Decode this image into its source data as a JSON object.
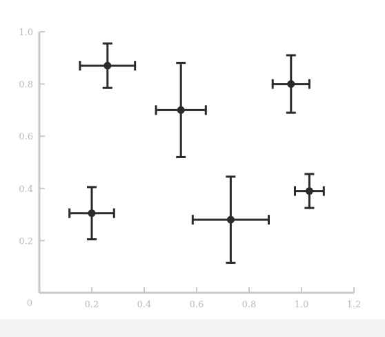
{
  "chart_data": {
    "type": "scatter",
    "title": "",
    "xlabel": "",
    "ylabel": "",
    "xlim": [
      0,
      1.2
    ],
    "ylim": [
      0,
      1.0
    ],
    "x_ticks": [
      "0.2",
      "0.4",
      "0.6",
      "0.8",
      "1.0",
      "1.2"
    ],
    "y_ticks": [
      "0.2",
      "0.4",
      "0.6",
      "0.8",
      "1.0"
    ],
    "origin_label": "0",
    "grid": false,
    "colors": {
      "axis": "#c9c9c9",
      "tick_text": "#b8b8b8",
      "marker": "#2b2b2b"
    },
    "points": [
      {
        "x": 0.26,
        "y": 0.87,
        "xerr": 0.105,
        "yerr": 0.085
      },
      {
        "x": 0.54,
        "y": 0.7,
        "xerr": 0.095,
        "yerr": 0.18
      },
      {
        "x": 0.96,
        "y": 0.8,
        "xerr": 0.07,
        "yerr": 0.11
      },
      {
        "x": 0.2,
        "y": 0.305,
        "xerr": 0.085,
        "yerr": 0.1
      },
      {
        "x": 0.73,
        "y": 0.28,
        "xerr": 0.145,
        "yerr": 0.165
      },
      {
        "x": 1.03,
        "y": 0.39,
        "xerr": 0.055,
        "yerr": 0.065
      }
    ]
  }
}
